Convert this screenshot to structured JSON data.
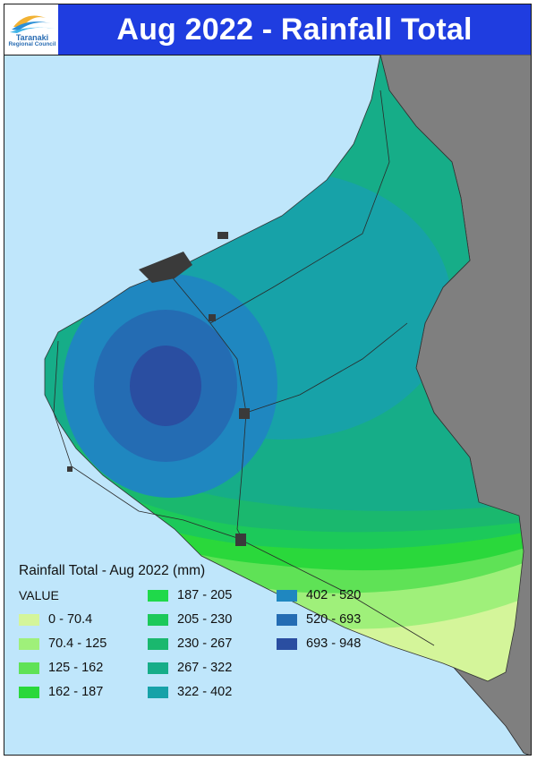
{
  "header": {
    "title": "Aug 2022 - Rainfall Total",
    "logo_text_line1": "Taranaki",
    "logo_text_line2": "Regional Council",
    "logo_icon": "wave-logo-icon"
  },
  "map": {
    "sea_color": "#bfe6fb",
    "land_outside_color": "#7f7f7f",
    "towns_color": "#3a3a3a"
  },
  "legend": {
    "title": "Rainfall Total - Aug 2022 (mm)",
    "value_label": "VALUE",
    "classes": [
      {
        "label": "0 - 70.4",
        "color": "#d4f59a"
      },
      {
        "label": "70.4 - 125",
        "color": "#9ff07a"
      },
      {
        "label": "125 - 162",
        "color": "#5fe256"
      },
      {
        "label": "162 - 187",
        "color": "#2ad83b"
      },
      {
        "label": "187 - 205",
        "color": "#1fd94a"
      },
      {
        "label": "205 - 230",
        "color": "#1cc95a"
      },
      {
        "label": "230 - 267",
        "color": "#1ab86e"
      },
      {
        "label": "267 - 322",
        "color": "#16ad88"
      },
      {
        "label": "322 - 402",
        "color": "#17a2a8"
      },
      {
        "label": "402 - 520",
        "color": "#1f87c0"
      },
      {
        "label": "520 - 693",
        "color": "#246cb3"
      },
      {
        "label": "693 - 948",
        "color": "#2a4ea1"
      }
    ]
  }
}
